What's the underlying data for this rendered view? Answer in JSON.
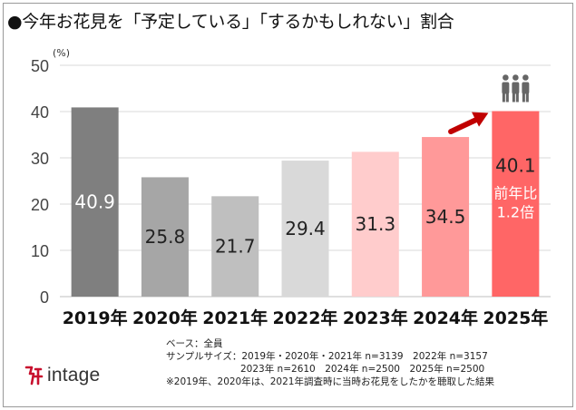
{
  "title": "●今年お花見を「予定している」「するかもしれない」割合",
  "unit_label": "(%)",
  "notes": {
    "base": "ベース：全員",
    "sample_line1": "サンプルサイズ：2019年・2020年・2021年 n=3139　2022年 n=3157",
    "sample_line2": "2023年 n=2610　2024年 n=2500　2025年 n=2500",
    "footnote": "※2019年、2020年は、2021年調査時に当時お花見をしたかを聴取した結果"
  },
  "logo": {
    "text": "intage",
    "color": "#c8102e"
  },
  "highlight_icon": "people-group-icon",
  "chart_data": {
    "type": "bar",
    "title": "今年お花見を「予定している」「するかもしれない」割合",
    "ylabel": "(%)",
    "xlabel": "",
    "ylim": [
      0,
      50
    ],
    "yticks": [
      0,
      10,
      20,
      30,
      40,
      50
    ],
    "grid": true,
    "categories": [
      "2019年",
      "2020年",
      "2021年",
      "2022年",
      "2023年",
      "2024年",
      "2025年"
    ],
    "values": [
      40.9,
      25.8,
      21.7,
      29.4,
      31.3,
      34.5,
      40.1
    ],
    "value_labels": [
      "40.9",
      "25.8",
      "21.7",
      "29.4",
      "31.3",
      "34.5",
      "40.1"
    ],
    "colors": [
      "#7f7f7f",
      "#a6a6a6",
      "#bfbfbf",
      "#d9d9d9",
      "#ffcccc",
      "#ff9999",
      "#ff6666"
    ],
    "label_colors": [
      "#ffffff",
      "#222222",
      "#222222",
      "#222222",
      "#222222",
      "#222222",
      "#222222"
    ],
    "annotation": {
      "line1": "前年比",
      "line2": "1.2倍",
      "color": "#ffffff"
    },
    "arrow_color": "#c00000"
  }
}
